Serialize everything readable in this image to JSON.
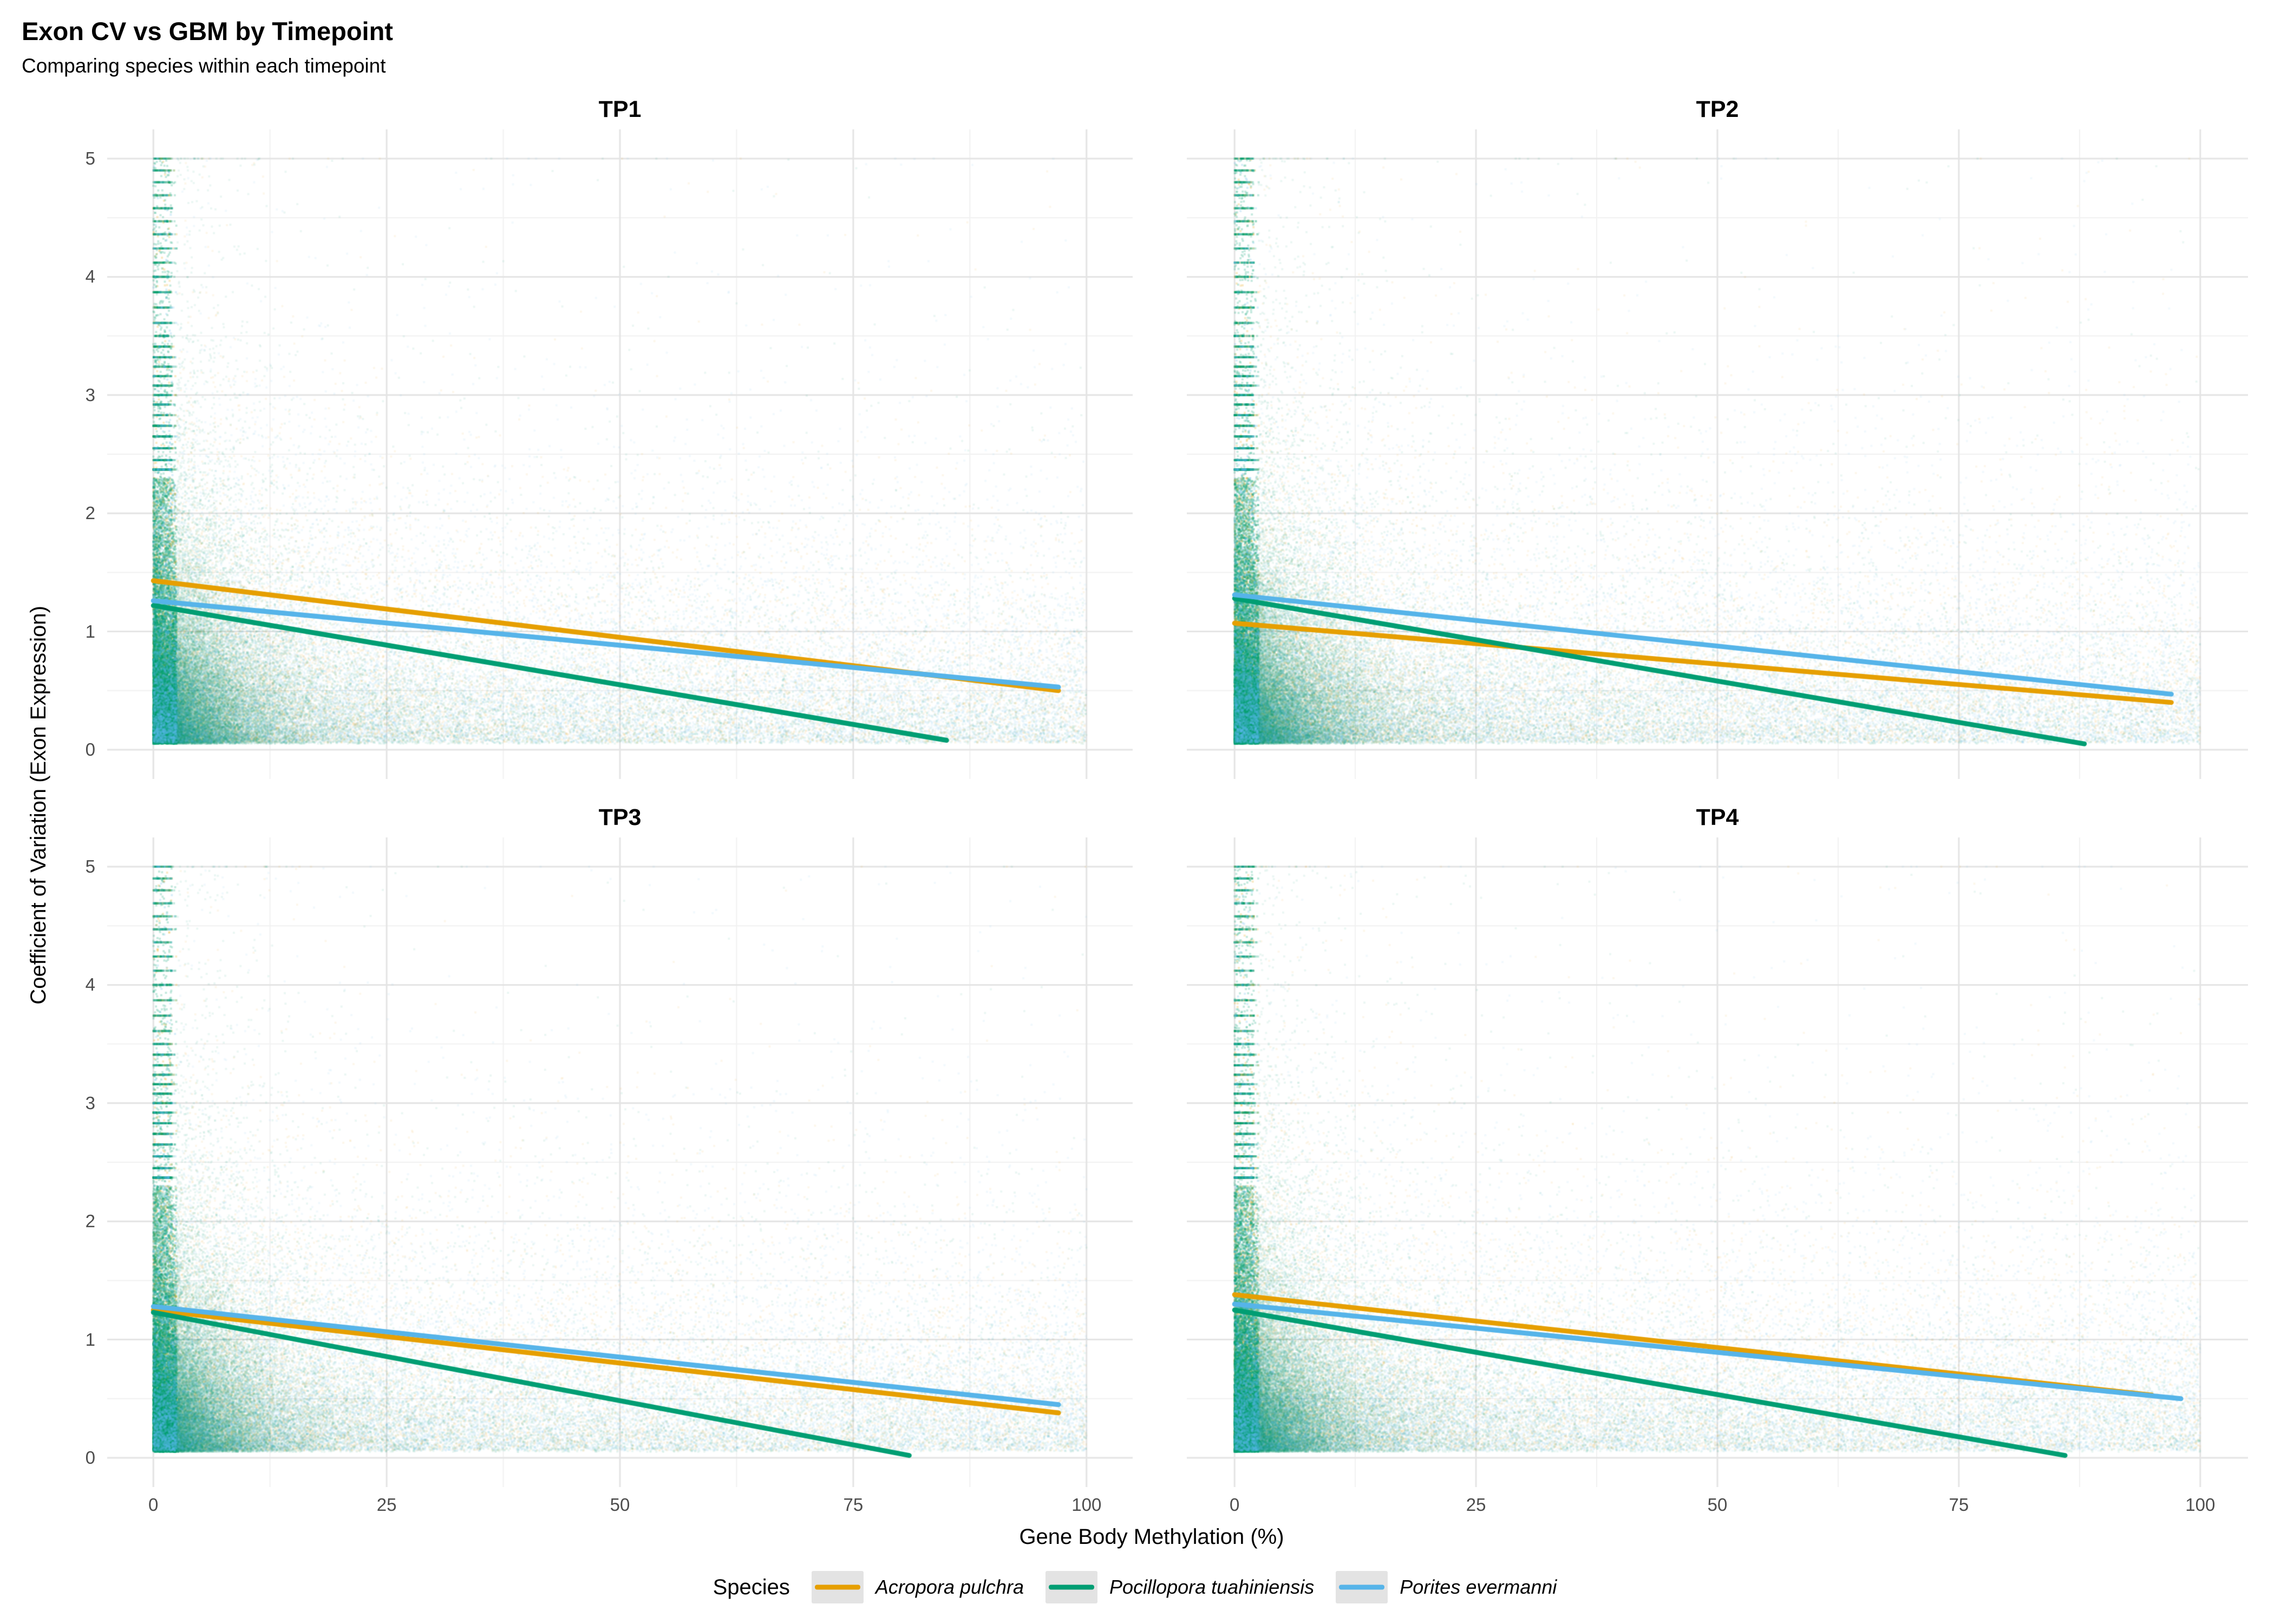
{
  "legend": {
    "title": "Species",
    "entries": [
      {
        "label": "Acropora pulchra",
        "color": "#E69F00"
      },
      {
        "label": "Pocillopora tuahiniensis",
        "color": "#009E73"
      },
      {
        "label": "Porites evermanni",
        "color": "#56B4E9"
      }
    ]
  },
  "theme": {
    "grid_major": "#E4E4E4",
    "grid_minor": "#F1F1F1",
    "tick_text": "#4d4d4d",
    "panel_background": "#FFFFFF"
  },
  "chart_data": {
    "type": "scatter",
    "title": "Exon CV vs GBM by Timepoint",
    "subtitle": "Comparing species within each timepoint",
    "xlabel": "Gene Body Methylation (%)",
    "ylabel": "Coefficient of Variation (Exon Expression)",
    "xlim": [
      0,
      100
    ],
    "ylim": [
      0,
      5
    ],
    "x_ticks": [
      0,
      25,
      50,
      75,
      100
    ],
    "y_ticks": [
      0,
      1,
      2,
      3,
      4,
      5
    ],
    "grid": true,
    "legend_position": "bottom",
    "facets": [
      {
        "name": "TP1",
        "trend_lines": [
          {
            "species": "Acropora pulchra",
            "color": "#E69F00",
            "start": {
              "x": 0,
              "y": 1.43
            },
            "end": {
              "x": 97,
              "y": 0.5
            }
          },
          {
            "species": "Pocillopora tuahiniensis",
            "color": "#009E73",
            "start": {
              "x": 0,
              "y": 1.22
            },
            "end": {
              "x": 85,
              "y": 0.08
            }
          },
          {
            "species": "Porites evermanni",
            "color": "#56B4E9",
            "start": {
              "x": 0,
              "y": 1.26
            },
            "end": {
              "x": 97,
              "y": 0.53
            }
          }
        ]
      },
      {
        "name": "TP2",
        "trend_lines": [
          {
            "species": "Acropora pulchra",
            "color": "#E69F00",
            "start": {
              "x": 0,
              "y": 1.07
            },
            "end": {
              "x": 97,
              "y": 0.4
            }
          },
          {
            "species": "Pocillopora tuahiniensis",
            "color": "#009E73",
            "start": {
              "x": 0,
              "y": 1.28
            },
            "end": {
              "x": 88,
              "y": 0.05
            }
          },
          {
            "species": "Porites evermanni",
            "color": "#56B4E9",
            "start": {
              "x": 0,
              "y": 1.31
            },
            "end": {
              "x": 97,
              "y": 0.47
            }
          }
        ]
      },
      {
        "name": "TP3",
        "trend_lines": [
          {
            "species": "Acropora pulchra",
            "color": "#E69F00",
            "start": {
              "x": 0,
              "y": 1.25
            },
            "end": {
              "x": 97,
              "y": 0.38
            }
          },
          {
            "species": "Pocillopora tuahiniensis",
            "color": "#009E73",
            "start": {
              "x": 0,
              "y": 1.23
            },
            "end": {
              "x": 81,
              "y": 0.02
            }
          },
          {
            "species": "Porites evermanni",
            "color": "#56B4E9",
            "start": {
              "x": 0,
              "y": 1.28
            },
            "end": {
              "x": 97,
              "y": 0.45
            }
          }
        ]
      },
      {
        "name": "TP4",
        "trend_lines": [
          {
            "species": "Acropora pulchra",
            "color": "#E69F00",
            "start": {
              "x": 0,
              "y": 1.38
            },
            "end": {
              "x": 95,
              "y": 0.53
            }
          },
          {
            "species": "Pocillopora tuahiniensis",
            "color": "#009E73",
            "start": {
              "x": 0,
              "y": 1.25
            },
            "end": {
              "x": 86,
              "y": 0.02
            }
          },
          {
            "species": "Porites evermanni",
            "color": "#56B4E9",
            "start": {
              "x": 0,
              "y": 1.3
            },
            "end": {
              "x": 98,
              "y": 0.5
            }
          }
        ]
      }
    ],
    "point_cloud": {
      "description": "Very dense per-gene scatter; points concentrate near GBM=0 and low CV, with discrete horizontal CV bands near x=0 and sparse points up to CV=5",
      "clouds": [
        {
          "name": "Acropora pulchra",
          "color": "#E69F00",
          "n": 15000,
          "x_mix": 0.5,
          "x_exp": 6.0,
          "x_unif_pow": 1.4,
          "y_base": 0.06,
          "y_exp": 0.5,
          "tail": 0.1
        },
        {
          "name": "Pocillopora tuahiniensis",
          "color": "#009E73",
          "n": 38000,
          "x_mix": 0.72,
          "x_exp": 4.5,
          "x_unif_pow": 2.0,
          "y_base": 0.05,
          "y_exp": 0.45,
          "tail": 0.13
        },
        {
          "name": "Porites evermanni",
          "color": "#56B4E9",
          "n": 20000,
          "x_mix": 0.35,
          "x_exp": 9.0,
          "x_unif_pow": 1.0,
          "y_base": 0.06,
          "y_exp": 0.5,
          "tail": 0.1
        }
      ]
    }
  }
}
